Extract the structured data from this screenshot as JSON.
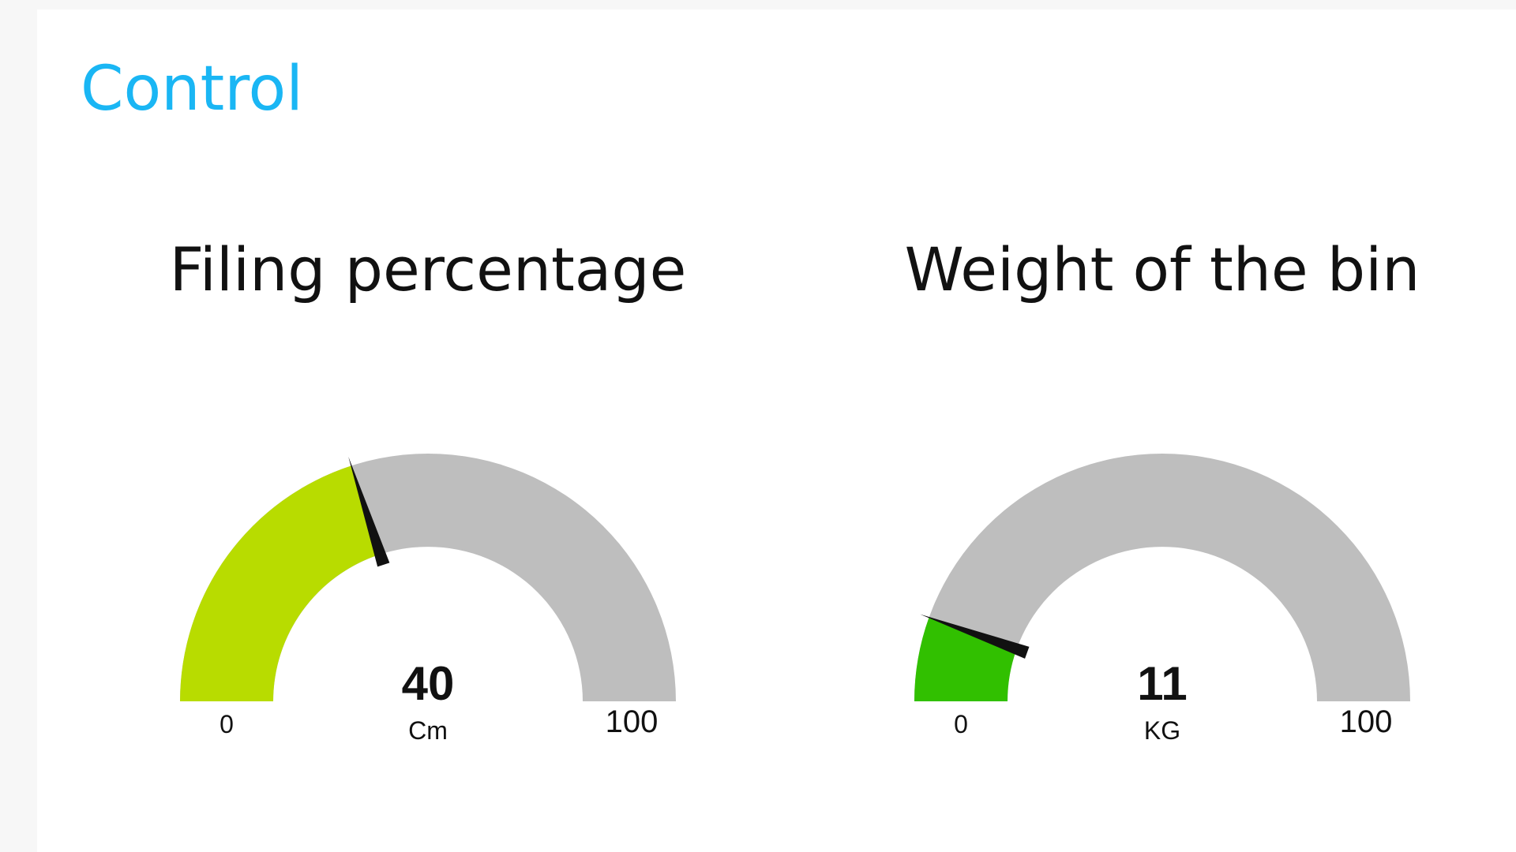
{
  "page": {
    "title": "Control"
  },
  "gauges": [
    {
      "title": "Filing percentage",
      "value": 40,
      "value_text": "40",
      "unit": "Cm",
      "min": 0,
      "max": 100,
      "min_label": "0",
      "max_label": "100",
      "fill_color": "#b8dc00",
      "track_color": "#bebebe",
      "needle_color": "#111111"
    },
    {
      "title": "Weight of the bin",
      "value": 11,
      "value_text": "11",
      "unit": "KG",
      "min": 0,
      "max": 100,
      "min_label": "0",
      "max_label": "100",
      "fill_color": "#31c000",
      "track_color": "#bebebe",
      "needle_color": "#111111"
    }
  ],
  "theme": {
    "title_color": "#1ab6f4",
    "background": "#f7f7f7",
    "panel": "#ffffff"
  }
}
